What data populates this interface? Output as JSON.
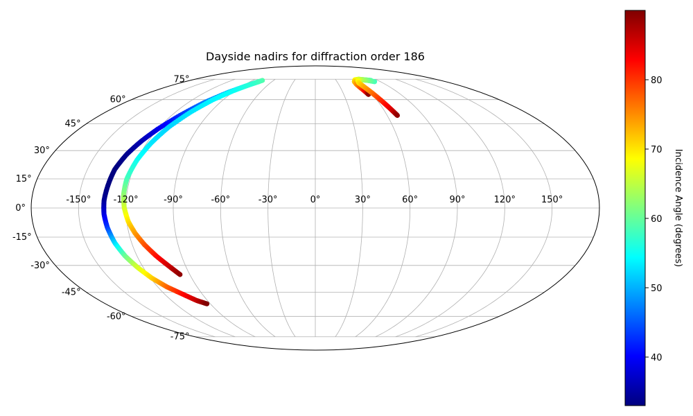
{
  "chart_data": {
    "type": "scatter",
    "projection": "mollweide",
    "title": "Dayside nadirs for diffraction order 186",
    "xlabel": "",
    "ylabel": "",
    "grid": true,
    "lon_ticks": [
      -150,
      -120,
      -90,
      -60,
      -30,
      0,
      30,
      60,
      90,
      120,
      150
    ],
    "lon_tick_labels": [
      "-150°",
      "-120°",
      "-90°",
      "-60°",
      "-30°",
      "0°",
      "30°",
      "60°",
      "90°",
      "120°",
      "150°"
    ],
    "lat_ticks": [
      -75,
      -60,
      -45,
      -30,
      -15,
      0,
      15,
      30,
      45,
      60,
      75
    ],
    "lat_tick_labels": [
      "-75°",
      "-60°",
      "-45°",
      "-30°",
      "-15°",
      "0°",
      "15°",
      "30°",
      "45°",
      "60°",
      "75°"
    ],
    "colorbar": {
      "label": "Incidence Angle (degrees)",
      "colormap": "jet",
      "range": [
        33,
        90
      ],
      "ticks": [
        40,
        50,
        60,
        70,
        80
      ],
      "tick_labels": [
        "40",
        "50",
        "60",
        "70",
        "80"
      ]
    },
    "tracks": [
      {
        "points": [
          {
            "lon": -78,
            "lat": 73,
            "inc": 57
          },
          {
            "lon": -85,
            "lat": 70,
            "inc": 53
          },
          {
            "lon": -95,
            "lat": 65,
            "inc": 50
          },
          {
            "lon": -105,
            "lat": 58,
            "inc": 47
          },
          {
            "lon": -113,
            "lat": 50,
            "inc": 43
          },
          {
            "lon": -120,
            "lat": 42,
            "inc": 39
          },
          {
            "lon": -125,
            "lat": 35,
            "inc": 36
          },
          {
            "lon": -129,
            "lat": 28,
            "inc": 34
          },
          {
            "lon": -132,
            "lat": 20,
            "inc": 33
          },
          {
            "lon": -133,
            "lat": 12,
            "inc": 33
          },
          {
            "lon": -134,
            "lat": 4,
            "inc": 34
          },
          {
            "lon": -134,
            "lat": -3,
            "inc": 38
          },
          {
            "lon": -133,
            "lat": -10,
            "inc": 43
          },
          {
            "lon": -131,
            "lat": -18,
            "inc": 52
          },
          {
            "lon": -128,
            "lat": -25,
            "inc": 60
          },
          {
            "lon": -124,
            "lat": -31,
            "inc": 66
          },
          {
            "lon": -119,
            "lat": -37,
            "inc": 71
          },
          {
            "lon": -113,
            "lat": -42,
            "inc": 77
          },
          {
            "lon": -106,
            "lat": -46,
            "inc": 82
          },
          {
            "lon": -99,
            "lat": -50,
            "inc": 86
          },
          {
            "lon": -93,
            "lat": -52,
            "inc": 90
          }
        ]
      },
      {
        "points": [
          {
            "lon": -76,
            "lat": 74,
            "inc": 59
          },
          {
            "lon": -83,
            "lat": 71,
            "inc": 57
          },
          {
            "lon": -92,
            "lat": 66,
            "inc": 55
          },
          {
            "lon": -100,
            "lat": 60,
            "inc": 54
          },
          {
            "lon": -107,
            "lat": 52,
            "inc": 53
          },
          {
            "lon": -113,
            "lat": 43,
            "inc": 52
          },
          {
            "lon": -117,
            "lat": 34,
            "inc": 53
          },
          {
            "lon": -120,
            "lat": 25,
            "inc": 55
          },
          {
            "lon": -122,
            "lat": 15,
            "inc": 58
          },
          {
            "lon": -122,
            "lat": 7,
            "inc": 62
          },
          {
            "lon": -121,
            "lat": 0,
            "inc": 66
          },
          {
            "lon": -119,
            "lat": -7,
            "inc": 70
          },
          {
            "lon": -116,
            "lat": -13,
            "inc": 74
          },
          {
            "lon": -112,
            "lat": -19,
            "inc": 78
          },
          {
            "lon": -107,
            "lat": -25,
            "inc": 82
          },
          {
            "lon": -101,
            "lat": -31,
            "inc": 86
          },
          {
            "lon": -97,
            "lat": -35,
            "inc": 89
          }
        ]
      },
      {
        "points": [
          {
            "lon": 80,
            "lat": 74,
            "inc": 58
          },
          {
            "lon": 73,
            "lat": 74.5,
            "inc": 62
          },
          {
            "lon": 65,
            "lat": 75,
            "inc": 65
          },
          {
            "lon": 58,
            "lat": 74.5,
            "inc": 68
          },
          {
            "lon": 54,
            "lat": 73,
            "inc": 71
          },
          {
            "lon": 53,
            "lat": 71,
            "inc": 74
          },
          {
            "lon": 53.5,
            "lat": 69,
            "inc": 77
          },
          {
            "lon": 54.5,
            "lat": 67,
            "inc": 80
          },
          {
            "lon": 55.5,
            "lat": 65,
            "inc": 84
          },
          {
            "lon": 56,
            "lat": 63.5,
            "inc": 89
          }
        ]
      },
      {
        "points": [
          {
            "lon": 82,
            "lat": 73,
            "inc": 58
          },
          {
            "lon": 75,
            "lat": 74,
            "inc": 61
          },
          {
            "lon": 67,
            "lat": 74.5,
            "inc": 64
          },
          {
            "lon": 61,
            "lat": 74,
            "inc": 67
          },
          {
            "lon": 58,
            "lat": 72,
            "inc": 70
          },
          {
            "lon": 59,
            "lat": 69,
            "inc": 73
          },
          {
            "lon": 61,
            "lat": 65,
            "inc": 76
          },
          {
            "lon": 63,
            "lat": 61,
            "inc": 79
          },
          {
            "lon": 65,
            "lat": 57,
            "inc": 82
          },
          {
            "lon": 67,
            "lat": 53,
            "inc": 85
          },
          {
            "lon": 68.5,
            "lat": 50,
            "inc": 89
          }
        ]
      }
    ]
  }
}
